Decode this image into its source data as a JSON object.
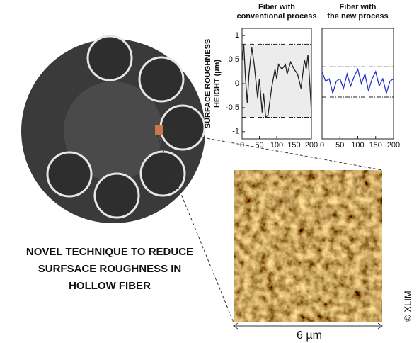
{
  "headline": [
    "NOVEL TECHNIQUE TO REDUCE",
    "SURFSACE ROUGHNESS IN",
    "HOLLOW FIBER"
  ],
  "scale_label": "6 µm",
  "credit": "© XLIM",
  "chart_data": [
    {
      "type": "line",
      "title": [
        "Fiber with",
        "conventional process"
      ],
      "ylabel": [
        "SURFACE ROUGHNESS",
        "HEIGHT (µm)"
      ],
      "x": [
        0,
        5,
        10,
        15,
        20,
        28,
        35,
        45,
        50,
        58,
        62,
        68,
        75,
        85,
        95,
        100,
        105,
        115,
        125,
        130,
        140,
        150,
        160,
        170,
        180,
        185,
        190,
        197,
        200
      ],
      "series": [
        {
          "color": "#222222",
          "values": [
            0.5,
            0.8,
            0.1,
            -0.4,
            0.2,
            0.75,
            0.4,
            -0.3,
            0.1,
            -0.6,
            -0.2,
            -0.7,
            -0.65,
            -0.1,
            0.3,
            0.1,
            0.4,
            0.3,
            0.4,
            0.2,
            0.45,
            0.3,
            0.2,
            -0.1,
            0.5,
            0.3,
            0.6,
            -0.2,
            -0.6
          ]
        }
      ],
      "xlim": [
        0,
        200
      ],
      "xticks": [
        0,
        50,
        100,
        150,
        200
      ],
      "ylim": [
        -1.15,
        1.15
      ],
      "yticks": [
        1,
        0.5,
        0,
        -0.5,
        -1
      ],
      "reference_lines": [
        0.82,
        -0.7
      ],
      "shade_between_reference_lines": true
    },
    {
      "type": "line",
      "title": [
        "Fiber with",
        "the new process"
      ],
      "x": [
        0,
        10,
        20,
        30,
        40,
        50,
        60,
        70,
        80,
        90,
        100,
        110,
        120,
        130,
        140,
        150,
        160,
        170,
        180,
        190,
        200
      ],
      "series": [
        {
          "color": "#2233cc",
          "values": [
            0.25,
            0.05,
            0.1,
            -0.2,
            0.05,
            0.1,
            -0.1,
            0.2,
            -0.05,
            0.15,
            0.3,
            0.0,
            0.2,
            -0.15,
            0.1,
            0.25,
            -0.05,
            0.1,
            -0.2,
            0.05,
            0.1
          ]
        }
      ],
      "xlim": [
        0,
        200
      ],
      "xticks": [
        0,
        50,
        100,
        150,
        200
      ],
      "ylim": [
        -1.15,
        1.15
      ],
      "reference_lines": [
        0.35,
        -0.28
      ],
      "shade_between_reference_lines": false
    }
  ]
}
